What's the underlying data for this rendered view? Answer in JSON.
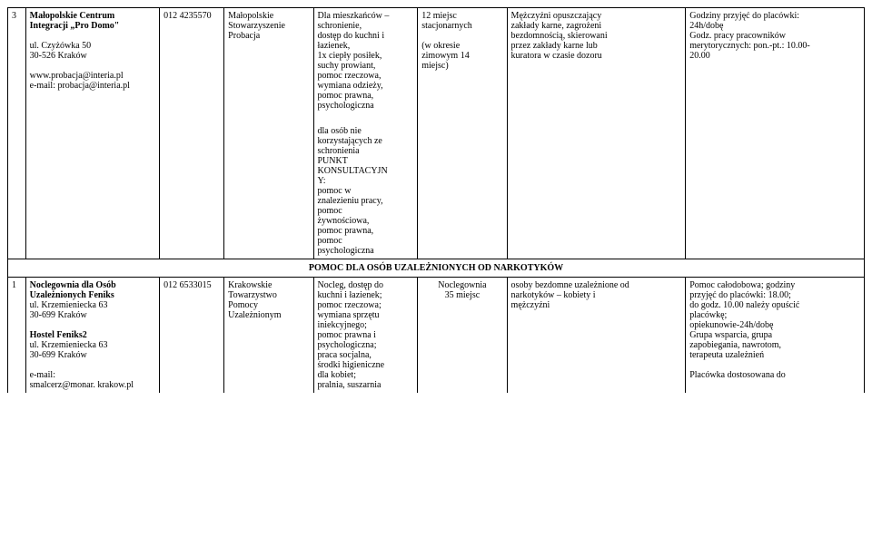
{
  "row1": {
    "num": "3",
    "name_l1": "Małopolskie Centrum",
    "name_l2": "Integracji „Pro Domo\"",
    "addr_l1": "ul. Czyżówka 50",
    "addr_l2": "30-526 Kraków",
    "web": "www.probacja@interia.pl",
    "email": "e-mail: probacja@interia.pl",
    "code": "012 4235570",
    "org_l1": "Małopolskie",
    "org_l2": "Stowarzyszenie",
    "org_l3": "Probacja",
    "svc_l1": "Dla mieszkańców –",
    "svc_l2": "schronienie,",
    "svc_l3": "dostęp do kuchni i",
    "svc_l4": "łazienek,",
    "svc_l5": "1x ciepły posiłek,",
    "svc_l6": "suchy prowiant,",
    "svc_l7": "pomoc rzeczowa,",
    "svc_l8": "wymiana odzieży,",
    "svc_l9": "pomoc prawna,",
    "svc_l10": "psychologiczna",
    "cap_l1": "12 miejsc",
    "cap_l2": "stacjonarnych",
    "cap_l3": "(w okresie",
    "cap_l4": "zimowym 14",
    "cap_l5": "miejsc)",
    "tgt_l1": "Mężczyźni opuszczający",
    "tgt_l2": "zakłady karne, zagrożeni",
    "tgt_l3": "bezdomnością, skierowani",
    "tgt_l4": "przez zakłady karne lub",
    "tgt_l5": "kuratora w czasie dozoru",
    "hrs_l1": "Godziny przyjęć do placówki:",
    "hrs_l2": "24h/dobę",
    "hrs_l3": "Godz. pracy pracowników",
    "hrs_l4": "merytorycznych: pon.-pt.: 10.00-",
    "hrs_l5": "20.00"
  },
  "row1b": {
    "svc_l1": "dla osób nie",
    "svc_l2": "korzystających ze",
    "svc_l3": "schronienia",
    "svc_l4": "PUNKT",
    "svc_l5": "KONSULTACYJN",
    "svc_l6": "Y:",
    "svc_l7": "pomoc w",
    "svc_l8": "znalezieniu pracy,",
    "svc_l9": "pomoc",
    "svc_l10": "żywnościowa,",
    "svc_l11": "pomoc prawna,",
    "svc_l12": "pomoc",
    "svc_l13": "psychologiczna"
  },
  "section": "POMOC DLA OSÓB UZALEŻNIONYCH OD NARKOTYKÓW",
  "row2": {
    "num": "1",
    "name_l1": "Noclegownia dla Osób",
    "name_l2": "Uzależnionych Feniks",
    "addr_l1": "ul. Krzemieniecka 63",
    "addr_l2": "30-699 Kraków",
    "name2": "Hostel Feniks2",
    "addr2_l1": "ul. Krzemieniecka 63",
    "addr2_l2": "30-699 Kraków",
    "email_l1": "e-mail:",
    "email_l2": "smalcerz@monar. krakow.pl",
    "code": "012 6533015",
    "org_l1": "Krakowskie",
    "org_l2": "Towarzystwo",
    "org_l3": "Pomocy",
    "org_l4": "Uzależnionym",
    "svc_l1": "Nocleg, dostęp do",
    "svc_l2": "kuchni i łazienek;",
    "svc_l3": "pomoc rzeczowa;",
    "svc_l4": "wymiana sprzętu",
    "svc_l5": "iniekcyjnego;",
    "svc_l6": "pomoc prawna i",
    "svc_l7": "psychologiczna;",
    "svc_l8": "praca socjalna,",
    "svc_l9": "środki higieniczne",
    "svc_l10": "dla kobiet;",
    "svc_l11": "pralnia, suszarnia",
    "cap_l1": "Noclegownia",
    "cap_l2": "35 miejsc",
    "tgt_l1": "osoby bezdomne uzależnione od",
    "tgt_l2": "narkotyków – kobiety i",
    "tgt_l3": "mężczyźni",
    "hrs_l1": "Pomoc całodobowa; godziny",
    "hrs_l2": "przyjęć do placówki: 18.00;",
    "hrs_l3": "do godz. 10.00 należy opuścić",
    "hrs_l4": "placówkę;",
    "hrs_l5": "opiekunowie-24h/dobę",
    "hrs_l6": "Grupa wsparcia, grupa",
    "hrs_l7": "zapobiegania, nawrotom,",
    "hrs_l8": "terapeuta uzależnień",
    "hrs_l9": "Placówka dostosowana do"
  }
}
